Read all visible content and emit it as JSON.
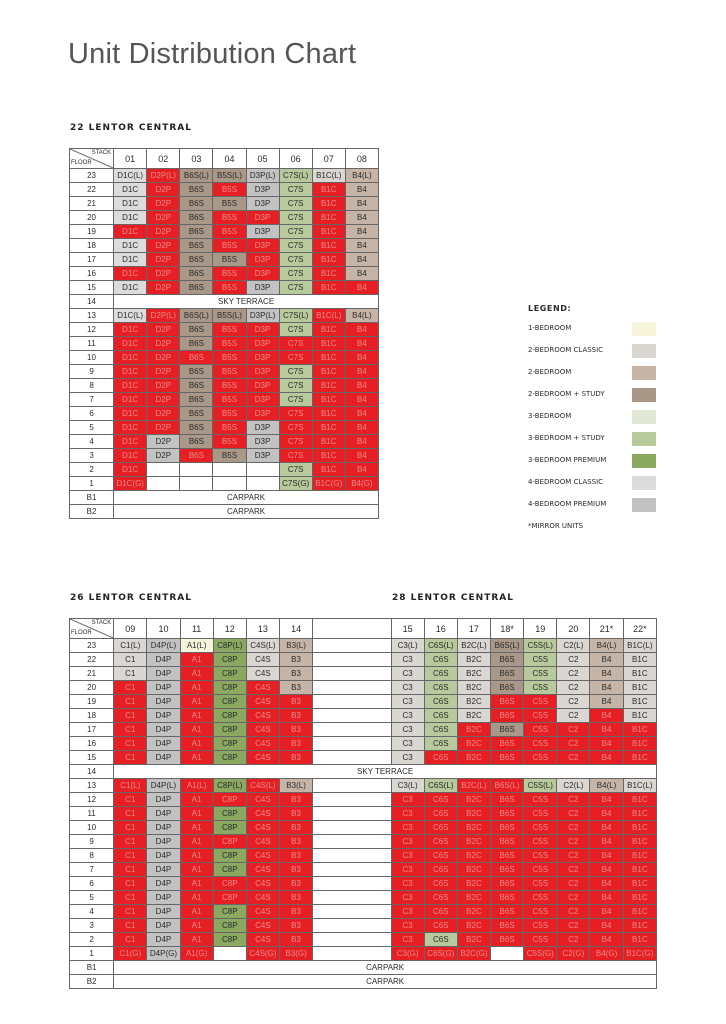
{
  "page": {
    "title": "Unit Distribution Chart"
  },
  "legend": {
    "heading": "LEGEND:",
    "items": [
      {
        "label": "1-BEDROOM",
        "color": "#f6f5dc"
      },
      {
        "label": "2-BEDROOM CLASSIC",
        "color": "#dad7d2"
      },
      {
        "label": "2-BEDROOM",
        "color": "#c6b5a7"
      },
      {
        "label": "2-BEDROOM + STUDY",
        "color": "#a99888"
      },
      {
        "label": "3-BEDROOM",
        "color": "#e2e8d6"
      },
      {
        "label": "3-BEDROOM + STUDY",
        "color": "#b8c99b"
      },
      {
        "label": "3-BEDROOM PREMIUM",
        "color": "#8aa860"
      },
      {
        "label": "4-BEDROOM CLASSIC",
        "color": "#dcdcdc"
      },
      {
        "label": "4-BEDROOM PREMIUM",
        "color": "#c2c2c2"
      }
    ],
    "note": "*MIRROR UNITS",
    "sold_color": "#e51f23"
  },
  "header_labels": {
    "stack": "STACK",
    "floor": "FLOOR"
  },
  "sky_terrace": "SKY TERRACE",
  "carpark": "CARPARK",
  "blocks": {
    "b22": {
      "title": "22 LENTOR CENTRAL",
      "stacks": [
        "01",
        "02",
        "03",
        "04",
        "05",
        "06",
        "07",
        "08"
      ],
      "rows": [
        [
          "23",
          "D1C(L)|4bc",
          "D2P(L)|s",
          "B6S(L)|2bs",
          "B5S(L)|2bs",
          "D3P(L)|4bp",
          "C7S(L)|3bs",
          "B1C(L)|2bc",
          "B4(L)|2b"
        ],
        [
          "22",
          "D1C|4bc",
          "D2P|s",
          "B6S|2bs",
          "B5S|s",
          "D3P|4bp",
          "C7S|3bs",
          "B1C|s",
          "B4|2b"
        ],
        [
          "21",
          "D1C|4bc",
          "D2P|s",
          "B6S|2bs",
          "B5S|2bs",
          "D3P|4bp",
          "C7S|3bs",
          "B1C|s",
          "B4|2b"
        ],
        [
          "20",
          "D1C|4bc",
          "D2P|s",
          "B6S|2bs",
          "B5S|s",
          "D3P|s",
          "C7S|3bs",
          "B1C|s",
          "B4|2b"
        ],
        [
          "19",
          "D1C|s",
          "D2P|s",
          "B6S|2bs",
          "B5S|s",
          "D3P|4bp",
          "C7S|3bs",
          "B1C|s",
          "B4|2b"
        ],
        [
          "18",
          "D1C|4bc",
          "D2P|s",
          "B6S|2bs",
          "B5S|s",
          "D3P|s",
          "C7S|3bs",
          "B1C|s",
          "B4|2b"
        ],
        [
          "17",
          "D1C|4bc",
          "D2P|s",
          "B6S|2bs",
          "B5S|2bs",
          "D3P|s",
          "C7S|3bs",
          "B1C|s",
          "B4|2b"
        ],
        [
          "16",
          "D1C|s",
          "D2P|s",
          "B6S|2bs",
          "B5S|s",
          "D3P|s",
          "C7S|3bs",
          "B1C|s",
          "B4|2b"
        ],
        [
          "15",
          "D1C|4bc",
          "D2P|s",
          "B6S|2bs",
          "B5S|s",
          "D3P|4bp",
          "C7S|3bs",
          "B1C|s",
          "B4|s"
        ],
        [
          "14",
          "SKY"
        ],
        [
          "13",
          "D1C(L)|4bc",
          "D2P(L)|s",
          "B6S(L)|2bs",
          "B5S(L)|2bs",
          "D3P(L)|4bp",
          "C7S(L)|3bs",
          "B1C(L)|s",
          "B4(L)|2b"
        ],
        [
          "12",
          "D1C|s",
          "D2P|s",
          "B6S|2bs",
          "B5S|s",
          "D3P|s",
          "C7S|3bs",
          "B1C|s",
          "B4|s"
        ],
        [
          "11",
          "D1C|s",
          "D2P|s",
          "B6S|2bs",
          "B5S|s",
          "D3P|s",
          "C7S|s",
          "B1C|s",
          "B4|s"
        ],
        [
          "10",
          "D1C|s",
          "D2P|s",
          "B6S|s",
          "B5S|s",
          "D3P|s",
          "C7S|s",
          "B1C|s",
          "B4|s"
        ],
        [
          "9",
          "D1C|s",
          "D2P|s",
          "B6S|2bs",
          "B5S|s",
          "D3P|s",
          "C7S|3bs",
          "B1C|s",
          "B4|s"
        ],
        [
          "8",
          "D1C|s",
          "D2P|s",
          "B6S|2bs",
          "B5S|s",
          "D3P|s",
          "C7S|3bs",
          "B1C|s",
          "B4|s"
        ],
        [
          "7",
          "D1C|s",
          "D2P|s",
          "B6S|2bs",
          "B5S|s",
          "D3P|s",
          "C7S|3bs",
          "B1C|s",
          "B4|s"
        ],
        [
          "6",
          "D1C|s",
          "D2P|s",
          "B6S|2bs",
          "B5S|s",
          "D3P|s",
          "C7S|s",
          "B1C|s",
          "B4|s"
        ],
        [
          "5",
          "D1C|s",
          "D2P|s",
          "B6S|2bs",
          "B5S|s",
          "D3P|4bp",
          "C7S|s",
          "B1C|s",
          "B4|s"
        ],
        [
          "4",
          "D1C|s",
          "D2P|4bp",
          "B6S|2bs",
          "B5S|s",
          "D3P|4bp",
          "C7S|s",
          "B1C|s",
          "B4|s"
        ],
        [
          "3",
          "D1C|s",
          "D2P|4bp",
          "B6S|s",
          "B5S|2bs",
          "D3P|4bp",
          "C7S|s",
          "B1C|s",
          "B4|s"
        ],
        [
          "2",
          "D1C|s",
          "|e",
          "|e",
          "|e",
          "|e",
          "C7S|3bs",
          "B1C|s",
          "B4|s"
        ],
        [
          "1",
          "D1C(G)|s",
          "|e",
          "|e",
          "|e",
          "|e",
          "C7S(G)|3bs",
          "B1C(G)|s",
          "B4(G)|s"
        ],
        [
          "B1",
          "CARPARK"
        ],
        [
          "B2",
          "CARPARK"
        ]
      ]
    },
    "b26": {
      "title": "26 LENTOR CENTRAL",
      "stacks": [
        "09",
        "10",
        "11",
        "12",
        "13",
        "14"
      ]
    },
    "b28": {
      "title": "28 LENTOR CENTRAL",
      "stacks": [
        "15",
        "16",
        "17",
        "18*",
        "19",
        "20",
        "21*",
        "22*"
      ]
    },
    "combined_rows": [
      [
        "23",
        "C1(L)|2bc",
        "D4P(L)|4bp",
        "A1(L)|1b",
        "C8P(L)|3bp",
        "C4S(L)|2bc",
        "B3(L)|2b",
        "C3(L)|2bc",
        "C6S(L)|3bs",
        "B2C(L)|2bc",
        "B6S(L)|2bs",
        "C5S(L)|3bs",
        "C2(L)|2bc",
        "B4(L)|2b",
        "B1C(L)|2bc"
      ],
      [
        "22",
        "C1|2bc",
        "D4P|4bp",
        "A1|s",
        "C8P|3bp",
        "C4S|2bc",
        "B3|2b",
        "C3|2bc",
        "C6S|3bs",
        "B2C|2bc",
        "B6S|2bs",
        "C5S|3bs",
        "C2|2bc",
        "B4|2b",
        "B1C|2bc"
      ],
      [
        "21",
        "C1|2bc",
        "D4P|4bp",
        "A1|s",
        "C8P|3bp",
        "C4S|2bc",
        "B3|2b",
        "C3|2bc",
        "C6S|3bs",
        "B2C|2bc",
        "B6S|2bs",
        "C5S|3bs",
        "C2|2bc",
        "B4|2b",
        "B1C|2bc"
      ],
      [
        "20",
        "C1|s",
        "D4P|4bp",
        "A1|s",
        "C8P|3bp",
        "C4S|s",
        "B3|2b",
        "C3|2bc",
        "C6S|3bs",
        "B2C|2bc",
        "B6S|2bs",
        "C5S|3bs",
        "C2|2bc",
        "B4|2b",
        "B1C|2bc"
      ],
      [
        "19",
        "C1|s",
        "D4P|4bp",
        "A1|s",
        "C8P|3bp",
        "C4S|s",
        "B3|s",
        "C3|2bc",
        "C6S|3bs",
        "B2C|2bc",
        "B6S|s",
        "C5S|s",
        "C2|2bc",
        "B4|2b",
        "B1C|2bc"
      ],
      [
        "18",
        "C1|s",
        "D4P|4bp",
        "A1|s",
        "C8P|3bp",
        "C4S|s",
        "B3|s",
        "C3|2bc",
        "C6S|3bs",
        "B2C|2bc",
        "B6S|s",
        "C5S|s",
        "C2|2bc",
        "B4|s",
        "B1C|2bc"
      ],
      [
        "17",
        "C1|s",
        "D4P|4bp",
        "A1|s",
        "C8P|3bp",
        "C4S|s",
        "B3|s",
        "C3|2bc",
        "C6S|3bs",
        "B2C|s",
        "B6S|2bs",
        "C5S|s",
        "C2|s",
        "B4|s",
        "B1C|s"
      ],
      [
        "16",
        "C1|s",
        "D4P|4bp",
        "A1|s",
        "C8P|3bp",
        "C4S|s",
        "B3|s",
        "C3|2bc",
        "C6S|3bs",
        "B2C|s",
        "B6S|s",
        "C5S|s",
        "C2|s",
        "B4|s",
        "B1C|s"
      ],
      [
        "15",
        "C1|s",
        "D4P|4bp",
        "A1|s",
        "C8P|3bp",
        "C4S|s",
        "B3|s",
        "C3|2bc",
        "C6S|s",
        "B2C|s",
        "B6S|s",
        "C5S|s",
        "C2|s",
        "B4|s",
        "B1C|s"
      ],
      [
        "14",
        "SKY"
      ],
      [
        "13",
        "C1(L)|s",
        "D4P(L)|4bp",
        "A1(L)|s",
        "C8P(L)|3bp",
        "C4S(L)|s",
        "B3(L)|2b",
        "C3(L)|2bc",
        "C6S(L)|3bs",
        "B2C(L)|s",
        "B6S(L)|s",
        "C5S(L)|3bs",
        "C2(L)|2bc",
        "B4(L)|2b",
        "B1C(L)|2bc"
      ],
      [
        "12",
        "C1|s",
        "D4P|4bp",
        "A1|s",
        "C8P|s",
        "C4S|s",
        "B3|s",
        "C3|s",
        "C6S|s",
        "B2C|s",
        "B6S|s",
        "C5S|s",
        "C2|s",
        "B4|s",
        "B1C|s"
      ],
      [
        "11",
        "C1|s",
        "D4P|4bp",
        "A1|s",
        "C8P|3bp",
        "C4S|s",
        "B3|s",
        "C3|s",
        "C6S|s",
        "B2C|s",
        "B6S|s",
        "C5S|s",
        "C2|s",
        "B4|s",
        "B1C|s"
      ],
      [
        "10",
        "C1|s",
        "D4P|4bp",
        "A1|s",
        "C8P|3bp",
        "C4S|s",
        "B3|s",
        "C3|s",
        "C6S|s",
        "B2C|s",
        "B6S|s",
        "C5S|s",
        "C2|s",
        "B4|s",
        "B1C|s"
      ],
      [
        "9",
        "C1|s",
        "D4P|4bp",
        "A1|s",
        "C8P|s",
        "C4S|s",
        "B3|s",
        "C3|s",
        "C6S|s",
        "B2C|s",
        "B6S|s",
        "C5S|s",
        "C2|s",
        "B4|s",
        "B1C|s"
      ],
      [
        "8",
        "C1|s",
        "D4P|4bp",
        "A1|s",
        "C8P|3bp",
        "C4S|s",
        "B3|s",
        "C3|s",
        "C6S|s",
        "B2C|s",
        "B6S|s",
        "C5S|s",
        "C2|s",
        "B4|s",
        "B1C|s"
      ],
      [
        "7",
        "C1|s",
        "D4P|4bp",
        "A1|s",
        "C8P|3bp",
        "C4S|s",
        "B3|s",
        "C3|s",
        "C6S|s",
        "B2C|s",
        "B6S|s",
        "C5S|s",
        "C2|s",
        "B4|s",
        "B1C|s"
      ],
      [
        "6",
        "C1|s",
        "D4P|4bp",
        "A1|s",
        "C8P|s",
        "C4S|s",
        "B3|s",
        "C3|s",
        "C6S|s",
        "B2C|s",
        "B6S|s",
        "C5S|s",
        "C2|s",
        "B4|s",
        "B1C|s"
      ],
      [
        "5",
        "C1|s",
        "D4P|4bp",
        "A1|s",
        "C8P|s",
        "C4S|s",
        "B3|s",
        "C3|s",
        "C6S|s",
        "B2C|s",
        "B6S|s",
        "C5S|s",
        "C2|s",
        "B4|s",
        "B1C|s"
      ],
      [
        "4",
        "C1|s",
        "D4P|4bp",
        "A1|s",
        "C8P|3bp",
        "C4S|s",
        "B3|s",
        "C3|s",
        "C6S|s",
        "B2C|s",
        "B6S|s",
        "C5S|s",
        "C2|s",
        "B4|s",
        "B1C|s"
      ],
      [
        "3",
        "C1|s",
        "D4P|4bp",
        "A1|s",
        "C8P|3bp",
        "C4S|s",
        "B3|s",
        "C3|s",
        "C6S|s",
        "B2C|s",
        "B6S|s",
        "C5S|s",
        "C2|s",
        "B4|s",
        "B1C|s"
      ],
      [
        "2",
        "C1|s",
        "D4P|4bp",
        "A1|s",
        "C8P|3bp",
        "C4S|s",
        "B3|s",
        "C3|s",
        "C6S|3bs",
        "B2C|s",
        "B6S|s",
        "C5S|s",
        "C2|s",
        "B4|s",
        "B1C|s"
      ],
      [
        "1",
        "C1(G)|s",
        "D4P(G)|4bp",
        "A1(G)|s",
        "|e",
        "C4S(G)|s",
        "B3(G)|s",
        "C3(G)|s",
        "C6S(G)|s",
        "B2C(G)|s",
        "|e",
        "C5S(G)|s",
        "C2(G)|s",
        "B4(G)|s",
        "B1C(G)|s"
      ],
      [
        "B1",
        "CARPARK"
      ],
      [
        "B2",
        "CARPARK"
      ]
    ]
  }
}
